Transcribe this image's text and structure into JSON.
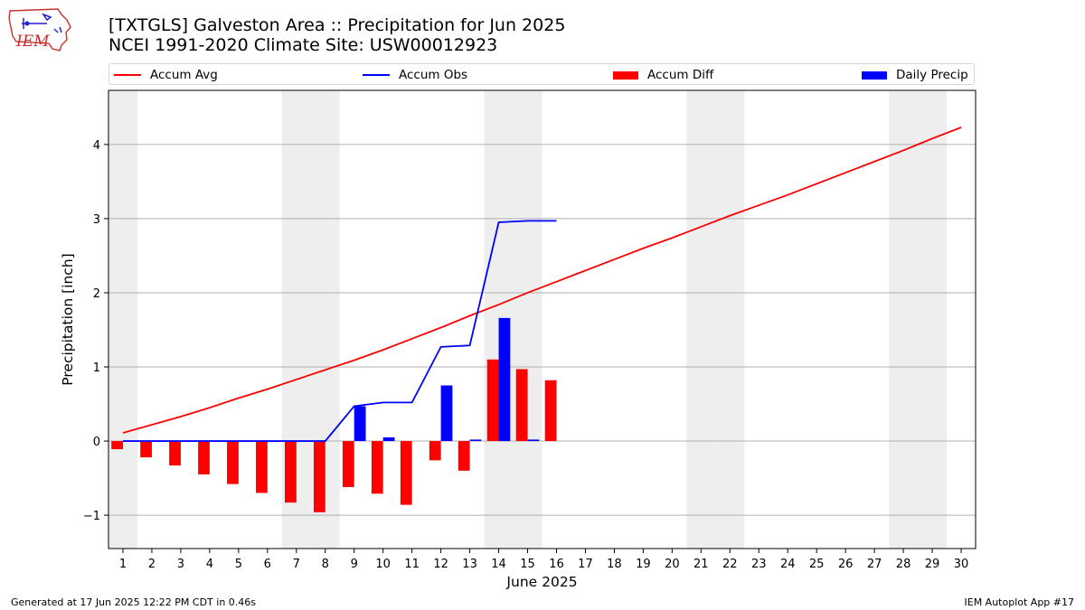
{
  "logo": {
    "text": "IEM"
  },
  "header": {
    "title_line1": "[TXTGLS] Galveston Area :: Precipitation for Jun 2025",
    "title_line2": "NCEI 1991-2020 Climate Site: USW00012923"
  },
  "legend": {
    "accum_avg": "Accum Avg",
    "accum_obs": "Accum Obs",
    "accum_diff": "Accum Diff",
    "daily_precip": "Daily Precip"
  },
  "colors": {
    "accum_avg": "#ff0000",
    "accum_obs": "#0000ff",
    "accum_diff": "#ff0000",
    "daily_precip": "#0000ff",
    "weekend_shade": "#eeeeee",
    "grid": "#b0b0b0"
  },
  "footer": {
    "left": "Generated at 17 Jun 2025 12:22 PM CDT in 0.46s",
    "right": "IEM Autoplot App #17"
  },
  "chart_data": {
    "type": "bar",
    "xlabel": "June 2025",
    "ylabel": "Precipitation [inch]",
    "xlim": [
      0.5,
      30.5
    ],
    "ylim": [
      -1.45,
      4.73
    ],
    "xticks": [
      1,
      2,
      3,
      4,
      5,
      6,
      7,
      8,
      9,
      10,
      11,
      12,
      13,
      14,
      15,
      16,
      17,
      18,
      19,
      20,
      21,
      22,
      23,
      24,
      25,
      26,
      27,
      28,
      29,
      30
    ],
    "yticks": [
      -1,
      0,
      1,
      2,
      3,
      4
    ],
    "ytick_labels": [
      "−1",
      "0",
      "1",
      "2",
      "3",
      "4"
    ],
    "grid": "horizontal",
    "legend_position": "top",
    "weekend_days": [
      1,
      7,
      8,
      14,
      15,
      21,
      22,
      28,
      29
    ],
    "days": [
      1,
      2,
      3,
      4,
      5,
      6,
      7,
      8,
      9,
      10,
      11,
      12,
      13,
      14,
      15,
      16,
      17,
      18,
      19,
      20,
      21,
      22,
      23,
      24,
      25,
      26,
      27,
      28,
      29,
      30
    ],
    "series": [
      {
        "name": "Accum Avg",
        "kind": "line",
        "x": [
          1,
          2,
          3,
          4,
          5,
          6,
          7,
          8,
          9,
          10,
          11,
          12,
          13,
          14,
          15,
          16,
          17,
          18,
          19,
          20,
          21,
          22,
          23,
          24,
          25,
          26,
          27,
          28,
          29,
          30
        ],
        "values": [
          0.11,
          0.22,
          0.33,
          0.45,
          0.58,
          0.7,
          0.83,
          0.96,
          1.09,
          1.23,
          1.38,
          1.53,
          1.69,
          1.84,
          2.0,
          2.15,
          2.3,
          2.45,
          2.6,
          2.74,
          2.89,
          3.04,
          3.18,
          3.32,
          3.47,
          3.62,
          3.77,
          3.92,
          4.08,
          4.23
        ]
      },
      {
        "name": "Accum Obs",
        "kind": "line",
        "x": [
          1,
          2,
          3,
          4,
          5,
          6,
          7,
          8,
          9,
          10,
          11,
          12,
          13,
          14,
          15,
          16
        ],
        "values": [
          0,
          0,
          0,
          0,
          0,
          0,
          0,
          0,
          0.47,
          0.52,
          0.52,
          1.27,
          1.29,
          2.95,
          2.97,
          2.97
        ]
      },
      {
        "name": "Accum Diff",
        "kind": "bar",
        "x": [
          1,
          2,
          3,
          4,
          5,
          6,
          7,
          8,
          9,
          10,
          11,
          12,
          13,
          14,
          15,
          16
        ],
        "values": [
          -0.11,
          -0.22,
          -0.33,
          -0.45,
          -0.58,
          -0.7,
          -0.83,
          -0.96,
          -0.62,
          -0.71,
          -0.86,
          -0.26,
          -0.4,
          1.1,
          0.97,
          0.82
        ]
      },
      {
        "name": "Daily Precip",
        "kind": "bar",
        "x": [
          9,
          10,
          12,
          13,
          14,
          15
        ],
        "values": [
          0.47,
          0.05,
          0.75,
          0.02,
          1.66,
          0.02
        ]
      }
    ]
  }
}
